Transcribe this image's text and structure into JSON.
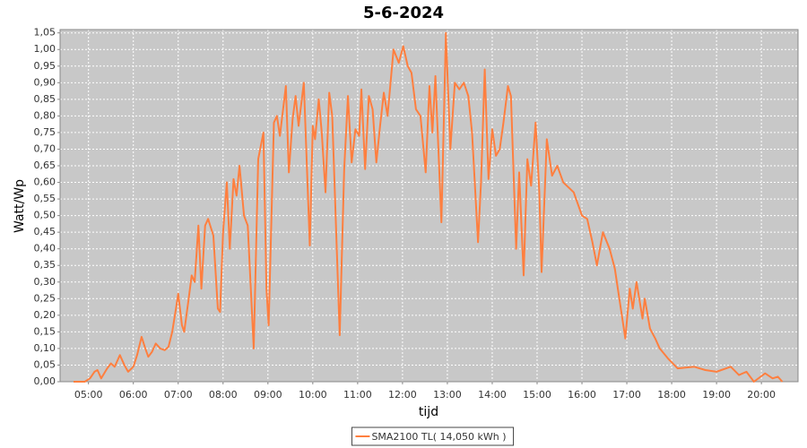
{
  "chart_data": {
    "type": "line",
    "title": "5-6-2024",
    "x_label": "tijd",
    "y_label": "Watt/Wp",
    "x": [
      "04:40",
      "04:55",
      "05:02",
      "05:08",
      "05:12",
      "05:17",
      "05:25",
      "05:30",
      "05:35",
      "05:42",
      "05:48",
      "05:53",
      "06:00",
      "06:05",
      "06:11",
      "06:16",
      "06:20",
      "06:25",
      "06:30",
      "06:36",
      "06:42",
      "06:47",
      "06:52",
      "06:57",
      "07:00",
      "07:05",
      "07:08",
      "07:14",
      "07:18",
      "07:22",
      "07:27",
      "07:31",
      "07:36",
      "07:40",
      "07:47",
      "07:53",
      "07:56",
      "08:00",
      "08:05",
      "08:09",
      "08:14",
      "08:18",
      "08:22",
      "08:28",
      "08:33",
      "08:41",
      "08:47",
      "08:54",
      "08:58",
      "09:01",
      "09:08",
      "09:12",
      "09:16",
      "09:24",
      "09:28",
      "09:33",
      "09:37",
      "09:41",
      "09:48",
      "09:56",
      "10:00",
      "10:03",
      "10:08",
      "10:12",
      "10:17",
      "10:22",
      "10:26",
      "10:36",
      "10:42",
      "10:47",
      "10:52",
      "10:57",
      "11:02",
      "11:05",
      "11:10",
      "11:15",
      "11:20",
      "11:25",
      "11:30",
      "11:35",
      "11:40",
      "11:48",
      "11:55",
      "12:01",
      "12:07",
      "12:12",
      "12:18",
      "12:24",
      "12:31",
      "12:36",
      "12:40",
      "12:44",
      "12:48",
      "12:52",
      "12:55",
      "12:58",
      "13:04",
      "13:10",
      "13:16",
      "13:22",
      "13:28",
      "13:33",
      "13:41",
      "13:45",
      "13:50",
      "13:55",
      "14:00",
      "14:05",
      "14:10",
      "14:15",
      "14:21",
      "14:25",
      "14:32",
      "14:36",
      "14:42",
      "14:47",
      "14:52",
      "14:58",
      "15:03",
      "15:06",
      "15:13",
      "15:20",
      "15:27",
      "15:35",
      "15:49",
      "16:00",
      "16:07",
      "16:14",
      "16:20",
      "16:28",
      "16:37",
      "16:44",
      "16:52",
      "16:58",
      "17:04",
      "17:08",
      "17:13",
      "17:21",
      "17:24",
      "17:31",
      "17:38",
      "17:44",
      "17:55",
      "18:08",
      "18:30",
      "18:45",
      "19:00",
      "19:19",
      "19:30",
      "19:40",
      "19:50",
      "20:05",
      "20:15",
      "20:22",
      "20:28"
    ],
    "series": [
      {
        "name": "SMA2100 TL( 14,050 kWh )",
        "color": "#ff7f3f",
        "values": [
          0,
          0,
          0.01,
          0.03,
          0.035,
          0.01,
          0.04,
          0.055,
          0.045,
          0.08,
          0.05,
          0.03,
          0.045,
          0.08,
          0.135,
          0.1,
          0.075,
          0.09,
          0.115,
          0.1,
          0.095,
          0.105,
          0.15,
          0.22,
          0.265,
          0.17,
          0.15,
          0.25,
          0.32,
          0.3,
          0.47,
          0.28,
          0.47,
          0.49,
          0.44,
          0.22,
          0.21,
          0.45,
          0.6,
          0.4,
          0.61,
          0.56,
          0.65,
          0.5,
          0.47,
          0.1,
          0.67,
          0.75,
          0.28,
          0.17,
          0.78,
          0.8,
          0.74,
          0.89,
          0.63,
          0.79,
          0.86,
          0.77,
          0.9,
          0.41,
          0.77,
          0.73,
          0.85,
          0.75,
          0.57,
          0.87,
          0.8,
          0.14,
          0.64,
          0.86,
          0.66,
          0.76,
          0.74,
          0.88,
          0.64,
          0.86,
          0.82,
          0.66,
          0.77,
          0.87,
          0.8,
          1.0,
          0.96,
          1.01,
          0.95,
          0.93,
          0.82,
          0.8,
          0.63,
          0.89,
          0.75,
          0.92,
          0.7,
          0.48,
          0.76,
          1.05,
          0.7,
          0.9,
          0.88,
          0.9,
          0.86,
          0.75,
          0.42,
          0.6,
          0.94,
          0.61,
          0.76,
          0.68,
          0.7,
          0.78,
          0.89,
          0.86,
          0.4,
          0.63,
          0.32,
          0.67,
          0.59,
          0.78,
          0.57,
          0.33,
          0.73,
          0.62,
          0.65,
          0.6,
          0.57,
          0.5,
          0.49,
          0.42,
          0.35,
          0.45,
          0.4,
          0.34,
          0.22,
          0.13,
          0.28,
          0.22,
          0.3,
          0.19,
          0.25,
          0.16,
          0.13,
          0.1,
          0.07,
          0.04,
          0.045,
          0.035,
          0.03,
          0.045,
          0.02,
          0.03,
          0,
          0.025,
          0.01,
          0.015,
          0
        ]
      }
    ],
    "xlim": [
      "04:22",
      "20:49"
    ],
    "xticks": [
      "05:00",
      "06:00",
      "07:00",
      "08:00",
      "09:00",
      "10:00",
      "11:00",
      "12:00",
      "13:00",
      "14:00",
      "15:00",
      "16:00",
      "17:00",
      "18:00",
      "19:00",
      "20:00"
    ],
    "ylim": [
      0,
      1.06
    ],
    "yticks": [
      {
        "value": 0,
        "label": "0,00"
      },
      {
        "value": 0.05,
        "label": "0,05"
      },
      {
        "value": 0.1,
        "label": "0,10"
      },
      {
        "value": 0.15,
        "label": "0,15"
      },
      {
        "value": 0.2,
        "label": "0,20"
      },
      {
        "value": 0.25,
        "label": "0,25"
      },
      {
        "value": 0.3,
        "label": "0,30"
      },
      {
        "value": 0.35,
        "label": "0,35"
      },
      {
        "value": 0.4,
        "label": "0,40"
      },
      {
        "value": 0.45,
        "label": "0,45"
      },
      {
        "value": 0.5,
        "label": "0,50"
      },
      {
        "value": 0.55,
        "label": "0,55"
      },
      {
        "value": 0.6,
        "label": "0,60"
      },
      {
        "value": 0.65,
        "label": "0,65"
      },
      {
        "value": 0.7,
        "label": "0,70"
      },
      {
        "value": 0.75,
        "label": "0,75"
      },
      {
        "value": 0.8,
        "label": "0,80"
      },
      {
        "value": 0.85,
        "label": "0,85"
      },
      {
        "value": 0.9,
        "label": "0,90"
      },
      {
        "value": 0.95,
        "label": "0,95"
      },
      {
        "value": 1,
        "label": "1,00"
      },
      {
        "value": 1.05,
        "label": "1,05"
      }
    ],
    "grid": true,
    "legend": "bottom"
  }
}
